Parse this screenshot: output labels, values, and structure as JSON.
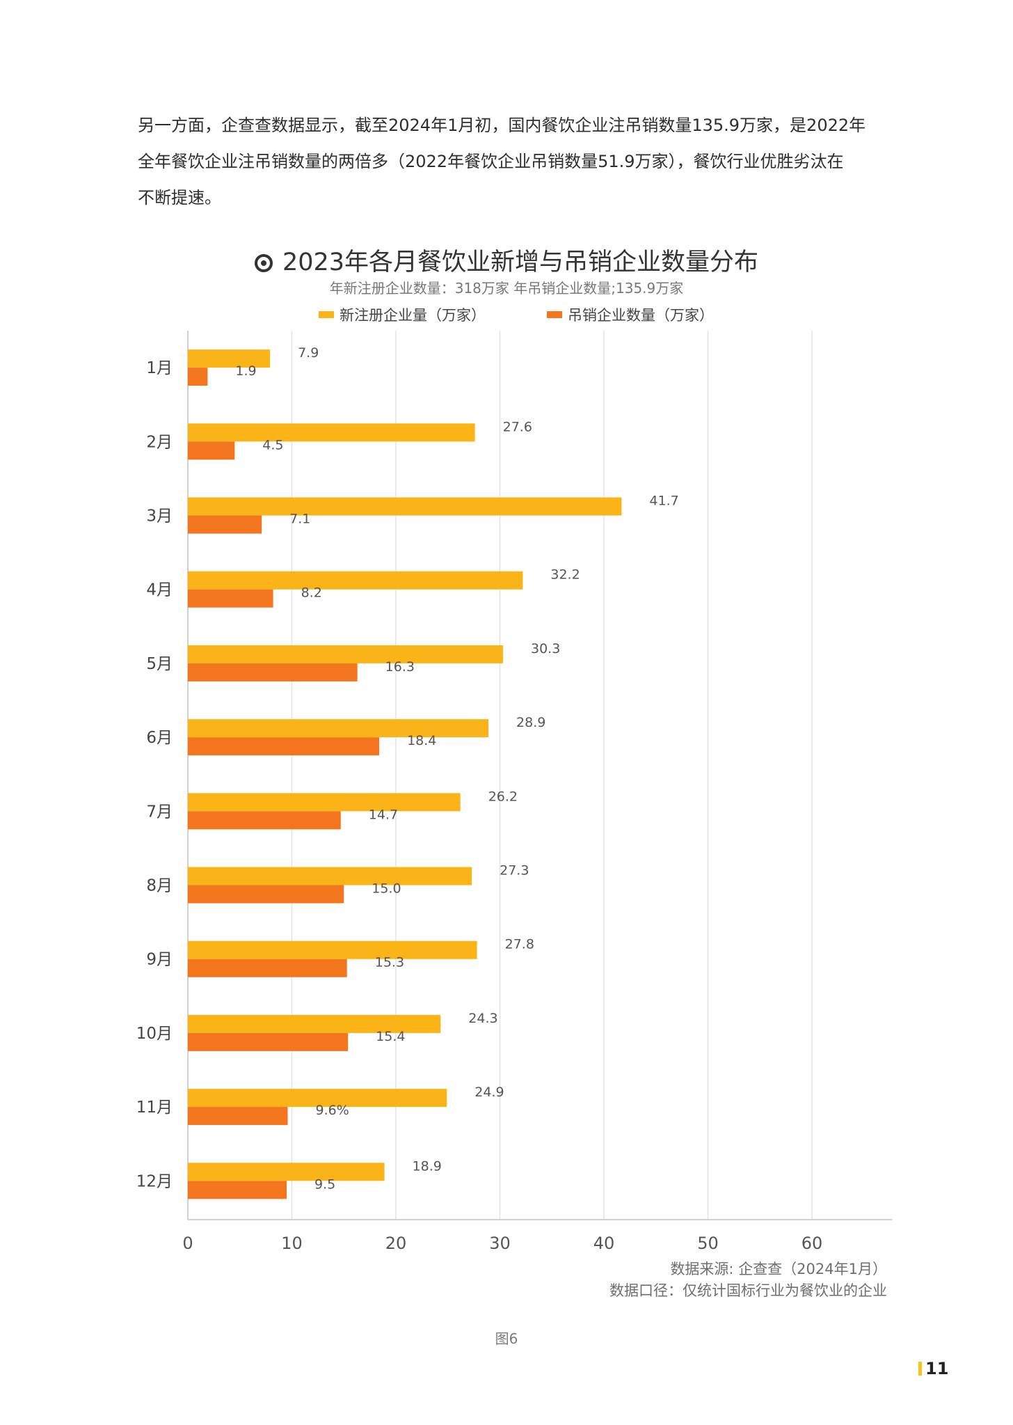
{
  "paragraph": {
    "line1": "另一方面，企查查数据显示，截至2024年1月初，国内餐饮企业注吊销数量135.9万家，是2022年",
    "line2": "全年餐饮企业注吊销数量的两倍多（2022年餐饮企业吊销数量51.9万家），餐饮行业优胜劣汰在",
    "line3": "不断提速。"
  },
  "source": {
    "line1": "数据来源: 企查查（2024年1月）",
    "line2": "数据口径：仅统计国标行业为餐饮业的企业"
  },
  "figure_label": "图6",
  "page_number": "11",
  "colors": {
    "new_registrations": "#FBB417",
    "revocations": "#F3761F",
    "grid": "#E3E3E3",
    "axis": "#D0D0D0"
  },
  "chart_data": {
    "type": "bar",
    "orientation": "horizontal",
    "title": "2023年各月餐饮业新增与吊销企业数量分布",
    "subtitle": "年新注册企业数量：318万家  年吊销企业数量;135.9万家",
    "categories": [
      "1月",
      "2月",
      "3月",
      "4月",
      "5月",
      "6月",
      "7月",
      "8月",
      "9月",
      "10月",
      "11月",
      "12月"
    ],
    "series": [
      {
        "name": "新注册企业量（万家）",
        "values": [
          7.9,
          27.6,
          41.7,
          32.2,
          30.3,
          28.9,
          26.2,
          27.3,
          27.8,
          24.3,
          24.9,
          18.9
        ],
        "labels": [
          "7.9",
          "27.6",
          "41.7",
          "32.2",
          "30.3",
          "28.9",
          "26.2",
          "27.3",
          "27.8",
          "24.3",
          "24.9",
          "18.9"
        ]
      },
      {
        "name": "吊销企业数量（万家）",
        "values": [
          1.9,
          4.5,
          7.1,
          8.2,
          16.3,
          18.4,
          14.7,
          15.0,
          15.3,
          15.4,
          9.6,
          9.5
        ],
        "labels": [
          "1.9",
          "4.5",
          "7.1",
          "8.2",
          "16.3",
          "18.4",
          "14.7",
          "15.0",
          "15.3",
          "15.4",
          "9.6%",
          "9.5"
        ]
      }
    ],
    "xlim": [
      0,
      60
    ],
    "xticks": [
      0,
      10,
      20,
      30,
      40,
      50,
      60
    ],
    "grid": true,
    "legend_position": "top"
  }
}
